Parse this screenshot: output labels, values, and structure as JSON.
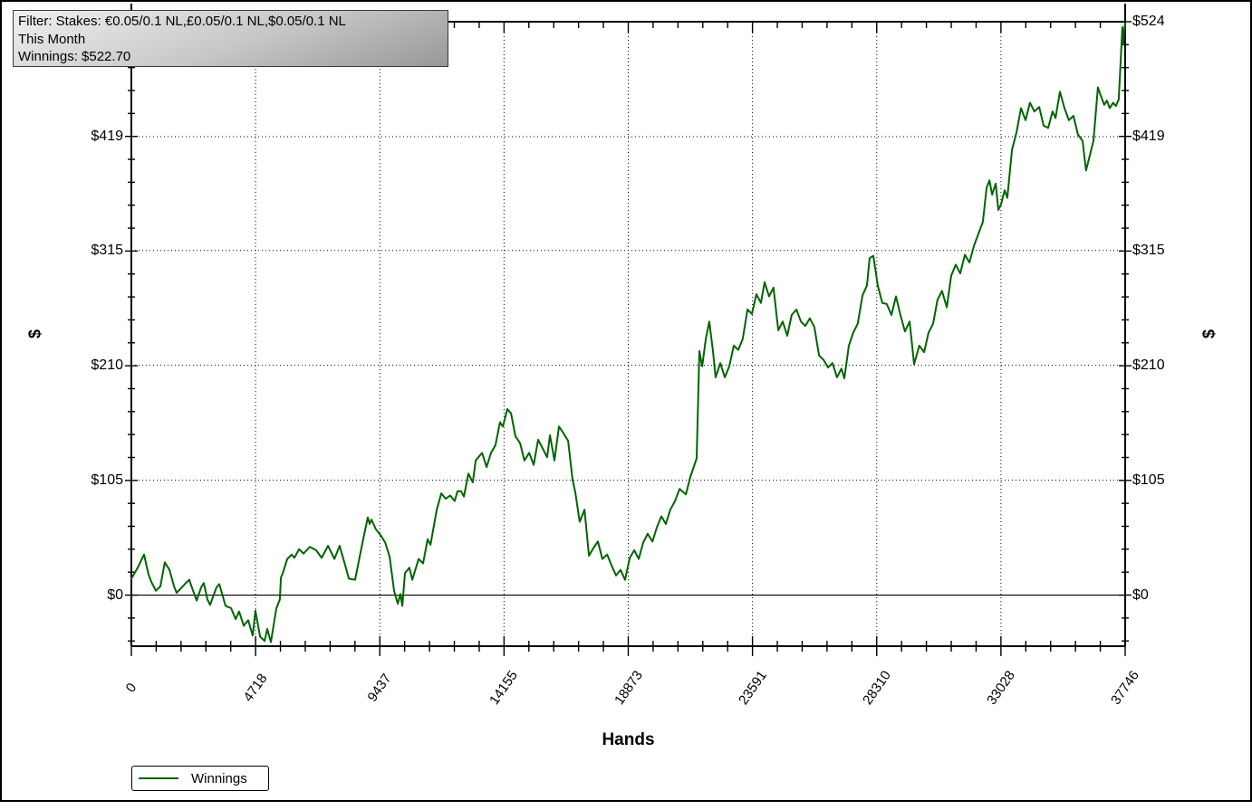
{
  "filter_box": {
    "line1": "Filter: Stakes: €0.05/0.1 NL,£0.05/0.1 NL,$0.05/0.1 NL",
    "line2": "This Month",
    "line3": "Winnings: $522.70"
  },
  "legend": {
    "label": "Winnings",
    "line_color": "#006400"
  },
  "chart_data": {
    "type": "line",
    "xlabel": "Hands",
    "ylabel_left": "$",
    "ylabel_right": "$",
    "xlim": [
      0,
      37746
    ],
    "ylim": [
      -46.7,
      524
    ],
    "grid": "dotted",
    "zero_line": true,
    "legend_position": "bottom-left",
    "x_ticks": [
      {
        "v": 0,
        "label": "0"
      },
      {
        "v": 4718,
        "label": "4718"
      },
      {
        "v": 9437,
        "label": "9437"
      },
      {
        "v": 14155,
        "label": "14155"
      },
      {
        "v": 18873,
        "label": "18873"
      },
      {
        "v": 23591,
        "label": "23591"
      },
      {
        "v": 28310,
        "label": "28310"
      },
      {
        "v": 33028,
        "label": "33028"
      },
      {
        "v": 37746,
        "label": "37746"
      }
    ],
    "y_ticks": [
      {
        "v": 0,
        "label": "$0"
      },
      {
        "v": 105,
        "label": "$105"
      },
      {
        "v": 210,
        "label": "$210"
      },
      {
        "v": 315,
        "label": "$315"
      },
      {
        "v": 419,
        "label": "$419"
      },
      {
        "v": 524,
        "label": "$524"
      }
    ],
    "x_minor_divisions": 40,
    "y_minor_step": 20.96,
    "final_value": 522.7,
    "series": [
      {
        "name": "Winnings",
        "color": "#006400",
        "points": [
          [
            0,
            15
          ],
          [
            240,
            25
          ],
          [
            480,
            37
          ],
          [
            650,
            19
          ],
          [
            760,
            12
          ],
          [
            930,
            4
          ],
          [
            1100,
            8
          ],
          [
            1270,
            30
          ],
          [
            1450,
            23
          ],
          [
            1620,
            8
          ],
          [
            1720,
            2
          ],
          [
            2030,
            10
          ],
          [
            2200,
            14
          ],
          [
            2300,
            7
          ],
          [
            2480,
            -5
          ],
          [
            2650,
            7
          ],
          [
            2750,
            11
          ],
          [
            2890,
            -4
          ],
          [
            2990,
            -9
          ],
          [
            3230,
            7
          ],
          [
            3340,
            10
          ],
          [
            3580,
            -10
          ],
          [
            3790,
            -12
          ],
          [
            3960,
            -22
          ],
          [
            4090,
            -15
          ],
          [
            4270,
            -28
          ],
          [
            4440,
            -23
          ],
          [
            4610,
            -37
          ],
          [
            4710,
            -14
          ],
          [
            4890,
            -38
          ],
          [
            5060,
            -42
          ],
          [
            5160,
            -31
          ],
          [
            5300,
            -43
          ],
          [
            5510,
            -12
          ],
          [
            5640,
            -4
          ],
          [
            5680,
            16
          ],
          [
            5750,
            20
          ],
          [
            5920,
            33
          ],
          [
            6090,
            37
          ],
          [
            6190,
            34
          ],
          [
            6370,
            42
          ],
          [
            6540,
            38
          ],
          [
            6780,
            44
          ],
          [
            7020,
            41
          ],
          [
            7230,
            34
          ],
          [
            7470,
            45
          ],
          [
            7710,
            33
          ],
          [
            7910,
            45
          ],
          [
            8090,
            30
          ],
          [
            8260,
            15
          ],
          [
            8500,
            14
          ],
          [
            8670,
            35
          ],
          [
            8840,
            55
          ],
          [
            8980,
            71
          ],
          [
            9050,
            65
          ],
          [
            9120,
            69
          ],
          [
            9290,
            60
          ],
          [
            9460,
            55
          ],
          [
            9640,
            48
          ],
          [
            9810,
            35
          ],
          [
            9980,
            4
          ],
          [
            10120,
            -8
          ],
          [
            10220,
            1
          ],
          [
            10290,
            -10
          ],
          [
            10390,
            20
          ],
          [
            10560,
            25
          ],
          [
            10670,
            14
          ],
          [
            10910,
            33
          ],
          [
            11080,
            29
          ],
          [
            11250,
            51
          ],
          [
            11360,
            46
          ],
          [
            11600,
            78
          ],
          [
            11770,
            93
          ],
          [
            11940,
            88
          ],
          [
            12110,
            91
          ],
          [
            12280,
            86
          ],
          [
            12390,
            95
          ],
          [
            12520,
            95
          ],
          [
            12630,
            90
          ],
          [
            12800,
            111
          ],
          [
            12970,
            103
          ],
          [
            13080,
            123
          ],
          [
            13320,
            130
          ],
          [
            13490,
            117
          ],
          [
            13660,
            130
          ],
          [
            13830,
            137
          ],
          [
            14000,
            158
          ],
          [
            14110,
            154
          ],
          [
            14280,
            170
          ],
          [
            14420,
            166
          ],
          [
            14590,
            145
          ],
          [
            14760,
            139
          ],
          [
            14930,
            123
          ],
          [
            15110,
            130
          ],
          [
            15280,
            119
          ],
          [
            15450,
            142
          ],
          [
            15620,
            134
          ],
          [
            15790,
            126
          ],
          [
            15900,
            146
          ],
          [
            16070,
            123
          ],
          [
            16240,
            154
          ],
          [
            16410,
            148
          ],
          [
            16590,
            141
          ],
          [
            16760,
            105
          ],
          [
            16860,
            94
          ],
          [
            17030,
            67
          ],
          [
            17210,
            78
          ],
          [
            17380,
            36
          ],
          [
            17550,
            43
          ],
          [
            17720,
            49
          ],
          [
            17890,
            33
          ],
          [
            18070,
            37
          ],
          [
            18240,
            27
          ],
          [
            18410,
            18
          ],
          [
            18580,
            23
          ],
          [
            18750,
            14
          ],
          [
            18930,
            34
          ],
          [
            19100,
            41
          ],
          [
            19270,
            33
          ],
          [
            19440,
            48
          ],
          [
            19610,
            56
          ],
          [
            19790,
            49
          ],
          [
            19960,
            62
          ],
          [
            20130,
            72
          ],
          [
            20300,
            65
          ],
          [
            20470,
            78
          ],
          [
            20650,
            86
          ],
          [
            20820,
            97
          ],
          [
            21060,
            92
          ],
          [
            21230,
            108
          ],
          [
            21470,
            125
          ],
          [
            21575,
            223
          ],
          [
            21680,
            209
          ],
          [
            21820,
            234
          ],
          [
            21950,
            250
          ],
          [
            22090,
            223
          ],
          [
            22190,
            199
          ],
          [
            22370,
            212
          ],
          [
            22540,
            199
          ],
          [
            22710,
            209
          ],
          [
            22880,
            228
          ],
          [
            23050,
            224
          ],
          [
            23220,
            234
          ],
          [
            23400,
            261
          ],
          [
            23570,
            257
          ],
          [
            23740,
            275
          ],
          [
            23910,
            267
          ],
          [
            24050,
            286
          ],
          [
            24220,
            273
          ],
          [
            24390,
            281
          ],
          [
            24570,
            242
          ],
          [
            24740,
            250
          ],
          [
            24910,
            237
          ],
          [
            25080,
            256
          ],
          [
            25260,
            261
          ],
          [
            25430,
            250
          ],
          [
            25600,
            246
          ],
          [
            25770,
            253
          ],
          [
            25940,
            245
          ],
          [
            26120,
            219
          ],
          [
            26290,
            215
          ],
          [
            26460,
            208
          ],
          [
            26630,
            212
          ],
          [
            26800,
            199
          ],
          [
            26970,
            207
          ],
          [
            27080,
            198
          ],
          [
            27250,
            228
          ],
          [
            27420,
            240
          ],
          [
            27590,
            248
          ],
          [
            27770,
            274
          ],
          [
            27940,
            283
          ],
          [
            28040,
            308
          ],
          [
            28180,
            310
          ],
          [
            28350,
            283
          ],
          [
            28520,
            267
          ],
          [
            28690,
            266
          ],
          [
            28870,
            256
          ],
          [
            29040,
            273
          ],
          [
            29210,
            256
          ],
          [
            29380,
            241
          ],
          [
            29560,
            250
          ],
          [
            29730,
            211
          ],
          [
            29930,
            228
          ],
          [
            30110,
            222
          ],
          [
            30280,
            240
          ],
          [
            30450,
            248
          ],
          [
            30620,
            270
          ],
          [
            30790,
            278
          ],
          [
            30970,
            263
          ],
          [
            31140,
            292
          ],
          [
            31310,
            302
          ],
          [
            31480,
            294
          ],
          [
            31660,
            311
          ],
          [
            31830,
            304
          ],
          [
            32000,
            319
          ],
          [
            32170,
            330
          ],
          [
            32340,
            341
          ],
          [
            32480,
            372
          ],
          [
            32590,
            379
          ],
          [
            32690,
            366
          ],
          [
            32830,
            376
          ],
          [
            32930,
            352
          ],
          [
            33030,
            357
          ],
          [
            33170,
            370
          ],
          [
            33270,
            363
          ],
          [
            33450,
            407
          ],
          [
            33620,
            423
          ],
          [
            33790,
            445
          ],
          [
            33960,
            434
          ],
          [
            34130,
            450
          ],
          [
            34300,
            442
          ],
          [
            34480,
            446
          ],
          [
            34650,
            429
          ],
          [
            34820,
            427
          ],
          [
            34990,
            442
          ],
          [
            35100,
            436
          ],
          [
            35270,
            460
          ],
          [
            35440,
            445
          ],
          [
            35610,
            434
          ],
          [
            35780,
            438
          ],
          [
            35950,
            421
          ],
          [
            36130,
            415
          ],
          [
            36260,
            388
          ],
          [
            36540,
            415
          ],
          [
            36710,
            464
          ],
          [
            36810,
            457
          ],
          [
            36950,
            448
          ],
          [
            37050,
            452
          ],
          [
            37160,
            445
          ],
          [
            37290,
            450
          ],
          [
            37390,
            447
          ],
          [
            37500,
            453
          ],
          [
            37640,
            519
          ],
          [
            37670,
            503
          ],
          [
            37700,
            514
          ],
          [
            37746,
            522.7
          ]
        ]
      }
    ]
  }
}
